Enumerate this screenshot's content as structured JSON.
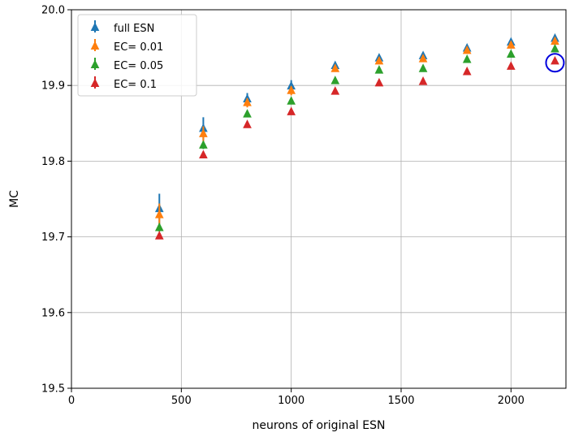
{
  "chart_data": {
    "type": "scatter",
    "title": "",
    "xlabel": "neurons of original ESN",
    "ylabel": "MC",
    "xlim": [
      0,
      2250
    ],
    "ylim": [
      19.5,
      20.0
    ],
    "xticks": [
      "0",
      "500",
      "1000",
      "1500",
      "2000"
    ],
    "xtick_values": [
      0,
      500,
      1000,
      1500,
      2000
    ],
    "yticks": [
      "19.5",
      "19.6",
      "19.7",
      "19.8",
      "19.9",
      "20.0"
    ],
    "ytick_values": [
      19.5,
      19.6,
      19.7,
      19.8,
      19.9,
      20.0
    ],
    "grid": true,
    "legend_position": "top-left",
    "marker": "triangle-up",
    "x": [
      400,
      600,
      800,
      1000,
      1200,
      1400,
      1600,
      1800,
      2000,
      2200
    ],
    "series": [
      {
        "name": "full ESN",
        "color": "#1f77b4",
        "values": [
          19.737,
          19.843,
          19.882,
          19.899,
          19.926,
          19.936,
          19.939,
          19.949,
          19.957,
          19.962
        ],
        "err": [
          0.02,
          0.015,
          0.008,
          0.008,
          0.004,
          0.004,
          0.004,
          0.004,
          0.004,
          0.004
        ]
      },
      {
        "name": "EC= 0.01",
        "color": "#ff7f0e",
        "values": [
          19.729,
          19.836,
          19.877,
          19.893,
          19.922,
          19.932,
          19.935,
          19.946,
          19.953,
          19.958
        ],
        "err": [
          0.015,
          0.01,
          0.006,
          0.006,
          0.004,
          0.004,
          0.004,
          0.004,
          0.004,
          0.004
        ]
      },
      {
        "name": "EC= 0.05",
        "color": "#2ca02c",
        "values": [
          19.712,
          19.821,
          19.862,
          19.879,
          19.906,
          19.92,
          19.922,
          19.934,
          19.941,
          19.948
        ],
        "err": [
          0.005,
          0.005,
          0.004,
          0.004,
          0.003,
          0.003,
          0.003,
          0.003,
          0.003,
          0.003
        ]
      },
      {
        "name": "EC= 0.1",
        "color": "#d62728",
        "values": [
          19.701,
          19.808,
          19.848,
          19.865,
          19.892,
          19.903,
          19.905,
          19.918,
          19.925,
          19.932
        ],
        "err": [
          0.004,
          0.004,
          0.003,
          0.003,
          0.003,
          0.003,
          0.003,
          0.003,
          0.003,
          0.003
        ]
      }
    ],
    "annotations": [
      {
        "type": "circle",
        "color": "#0000dd",
        "x": 2200,
        "y": 19.93
      }
    ]
  }
}
